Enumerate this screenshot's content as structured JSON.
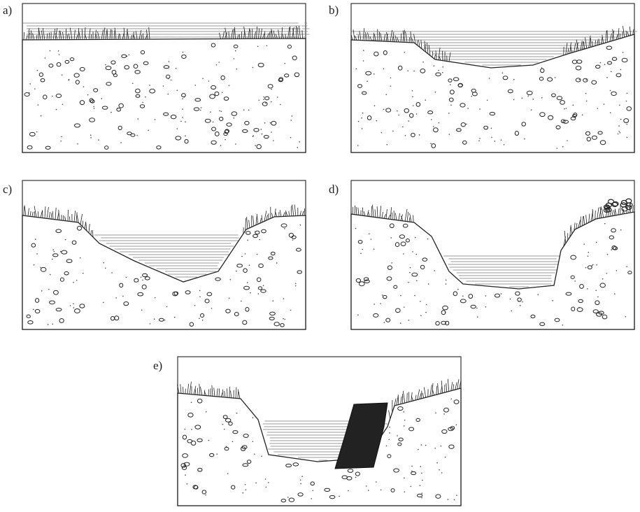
{
  "panels": [
    {
      "label": "a)"
    },
    {
      "label": "b)"
    },
    {
      "label": "c)"
    },
    {
      "label": "d)"
    },
    {
      "label": "e)"
    }
  ]
}
